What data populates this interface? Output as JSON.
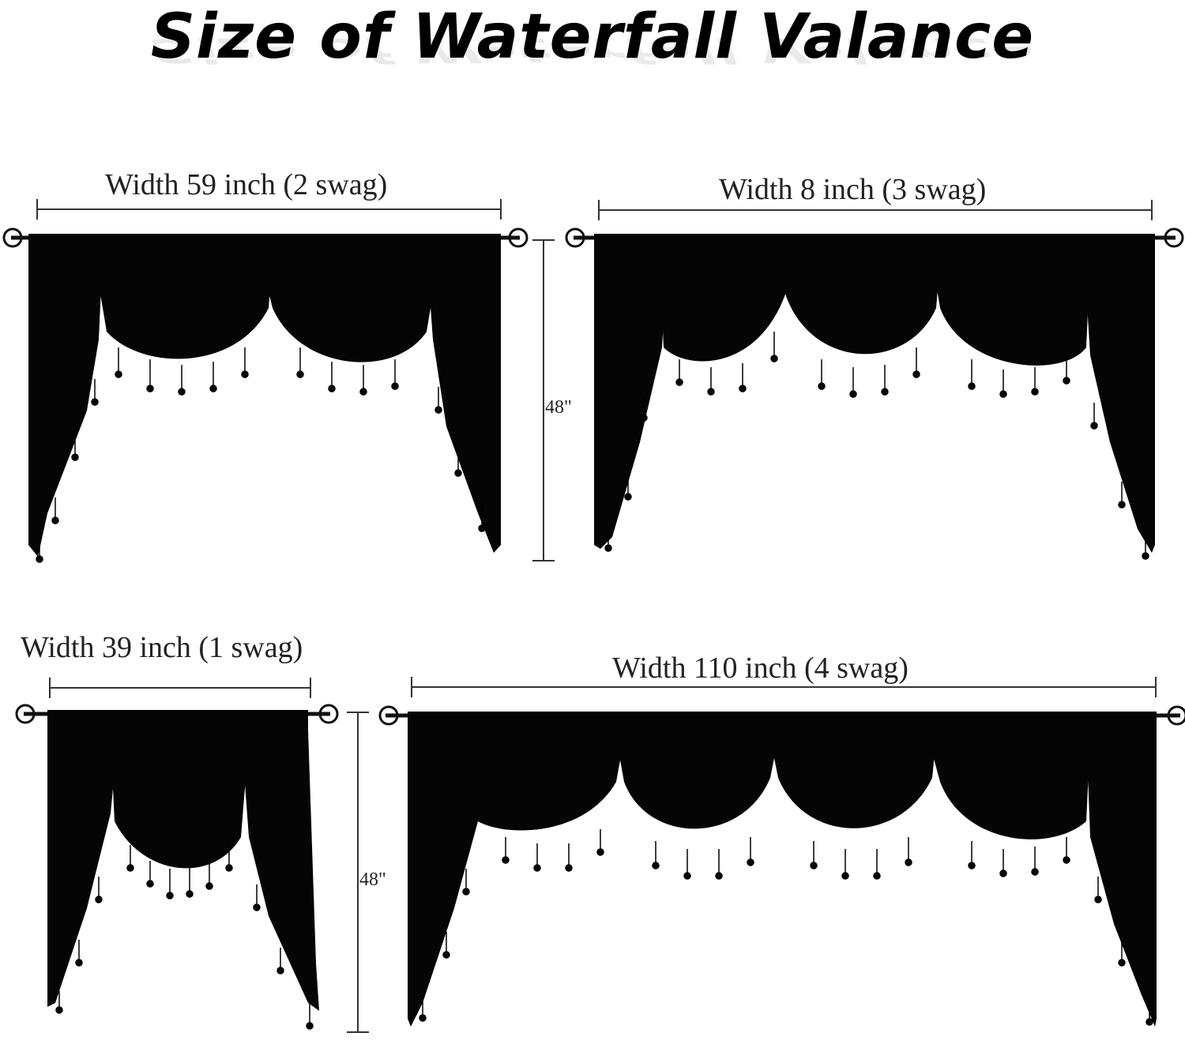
{
  "title": "Size of Waterfall Valance",
  "valances": [
    {
      "width_label": "Width 59 inch (2 swag)",
      "height_label": "48\"",
      "swags": 2
    },
    {
      "width_label": "Width 8 inch (3 swag)",
      "height_label": "",
      "swags": 3
    },
    {
      "width_label": "Width 39 inch (1 swag)",
      "height_label": "48\"",
      "swags": 1
    },
    {
      "width_label": "Width 110 inch (4 swag)",
      "height_label": "",
      "swags": 4
    }
  ],
  "colors": {
    "fabric": "#050505",
    "guide": "#333333",
    "background": "#ffffff"
  }
}
